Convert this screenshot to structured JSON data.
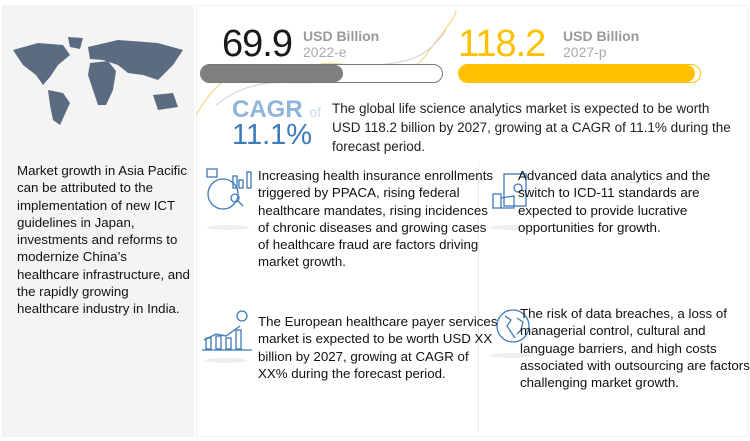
{
  "left_panel": {
    "text": "Market growth in Asia Pacific can be attributed to the implementation of new ICT guidelines in Japan, investments and reforms to modernize China’s healthcare infrastructure, and the rapidly growing healthcare industry in India.",
    "icon": "world-map"
  },
  "market": {
    "current": {
      "value": "69.9",
      "unit": "USD Billion",
      "year": "2022-e",
      "fill_fraction": 0.59,
      "color": "#7f7f7f"
    },
    "forecast": {
      "value": "118.2",
      "unit": "USD Billion",
      "year": "2027-p",
      "fill_fraction": 0.98,
      "color": "#ffc000"
    },
    "cagr_label": "CAGR",
    "cagr_of": "of",
    "cagr_value": "11.1%",
    "cagr_color": "#3d7ab8",
    "description": "The global life science analytics market is expected to be worth USD 118.2 billion by 2027, growing at a CAGR of 11.1% during the forecast period."
  },
  "items": [
    {
      "icon": "analytics-chart-icon",
      "text": "Increasing health insurance enrollments triggered by PPACA, rising federal healthcare mandates, rising incidences of chronic diseases and growing cases of healthcare fraud are factors driving market growth."
    },
    {
      "icon": "money-hand-icon",
      "text": "Advanced data analytics and the switch to ICD-11 standards are expected to provide lucrative opportunities for growth."
    },
    {
      "icon": "growth-bar-dollar-icon",
      "text": "The European healthcare payer services market is expected  to be worth USD XX billion by 2027, growing at CAGR of XX% during the forecast period."
    },
    {
      "icon": "globe-icon",
      "text": "The risk of data breaches, a loss of managerial control, cultural and language barriers, and high costs associated with outsourcing are factors challenging market growth."
    }
  ]
}
